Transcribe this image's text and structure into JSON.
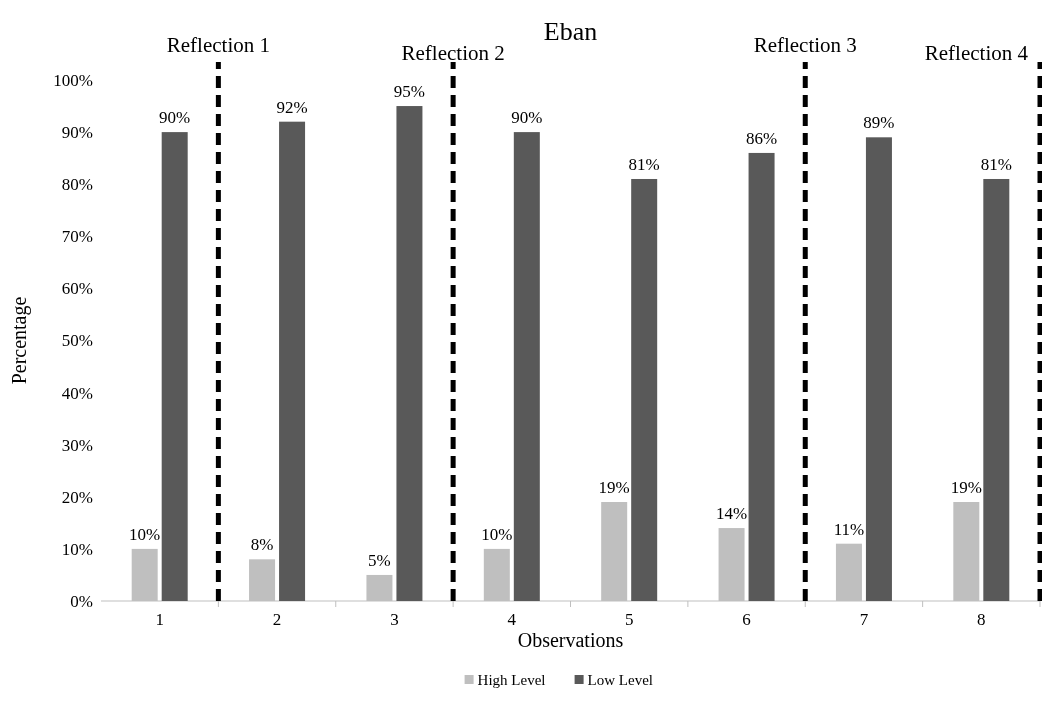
{
  "chart_data": {
    "type": "bar",
    "title": "Eban",
    "xlabel": "Observations",
    "ylabel": "Percentage",
    "x": [
      1,
      2,
      3,
      4,
      5,
      6,
      7,
      8
    ],
    "xlim": [
      0.5,
      8.5
    ],
    "xticks": [
      1,
      2,
      3,
      4,
      5,
      6,
      7,
      8
    ],
    "ylim": [
      0,
      100
    ],
    "yticks": [
      {
        "value": 0,
        "label": "0%"
      },
      {
        "value": 10,
        "label": "10%"
      },
      {
        "value": 20,
        "label": "20%"
      },
      {
        "value": 30,
        "label": "30%"
      },
      {
        "value": 40,
        "label": "40%"
      },
      {
        "value": 50,
        "label": "50%"
      },
      {
        "value": 60,
        "label": "60%"
      },
      {
        "value": 70,
        "label": "70%"
      },
      {
        "value": 80,
        "label": "80%"
      },
      {
        "value": 90,
        "label": "90%"
      },
      {
        "value": 100,
        "label": "100%"
      }
    ],
    "series": [
      {
        "name": "High Level",
        "color": "#bfbfbf",
        "values": [
          10,
          8,
          5,
          10,
          19,
          14,
          11,
          19
        ],
        "value_labels": [
          "10%",
          "8%",
          "5%",
          "10%",
          "19%",
          "14%",
          "11%",
          "19%"
        ]
      },
      {
        "name": "Low Level",
        "color": "#595959",
        "values": [
          90,
          92,
          95,
          90,
          81,
          86,
          89,
          81
        ],
        "value_labels": [
          "90%",
          "92%",
          "95%",
          "90%",
          "81%",
          "86%",
          "89%",
          "81%"
        ]
      }
    ],
    "ref_lines": [
      {
        "axis": "x",
        "value": 1.5,
        "label": "Reflection 1",
        "color": "#000000",
        "line_style": "dashed"
      },
      {
        "axis": "x",
        "value": 3.5,
        "label": "Reflection 2",
        "color": "#000000",
        "line_style": "dashed"
      },
      {
        "axis": "x",
        "value": 6.5,
        "label": "Reflection 3",
        "color": "#000000",
        "line_style": "dashed"
      },
      {
        "axis": "x",
        "value": 8.5,
        "label": "Reflection 4",
        "color": "#000000",
        "line_style": "dashed"
      }
    ],
    "legend": "bottom"
  }
}
